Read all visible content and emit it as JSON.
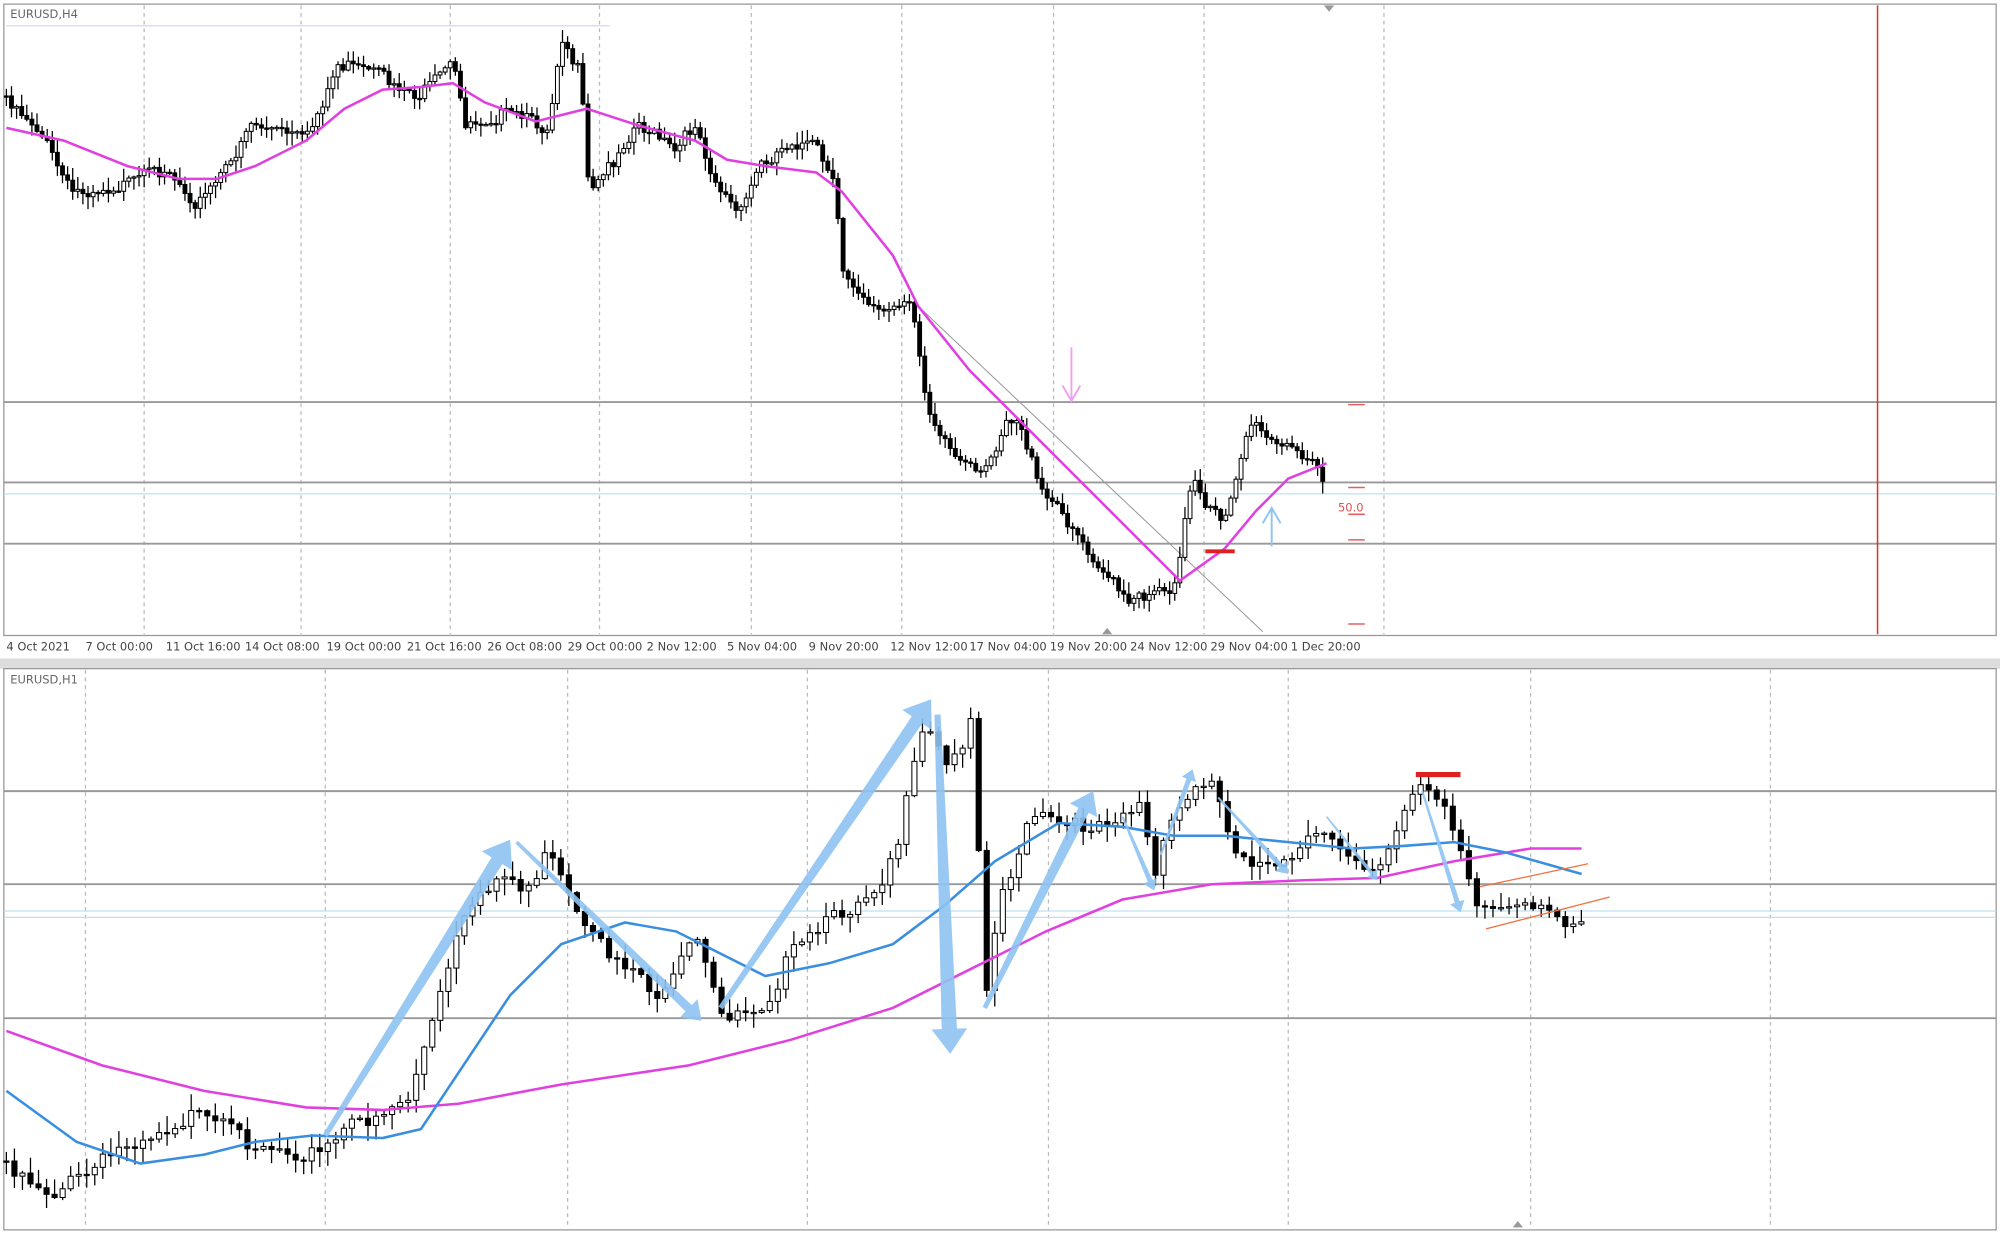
{
  "top_panel": {
    "symbol": "EURUSD,H4",
    "time_labels": [
      "4 Oct 2021",
      "7 Oct 00:00",
      "11 Oct 16:00",
      "14 Oct 08:00",
      "19 Oct 00:00",
      "21 Oct 16:00",
      "26 Oct 08:00",
      "29 Oct 00:00",
      "2 Nov 12:00",
      "5 Nov 04:00",
      "9 Nov 20:00",
      "12 Nov 12:00",
      "17 Nov 04:00",
      "19 Nov 20:00",
      "24 Nov 12:00",
      "29 Nov 04:00",
      "1 Dec 20:00"
    ],
    "level_label": "50.0"
  },
  "bottom_panel": {
    "symbol": "EURUSD,H1"
  }
}
